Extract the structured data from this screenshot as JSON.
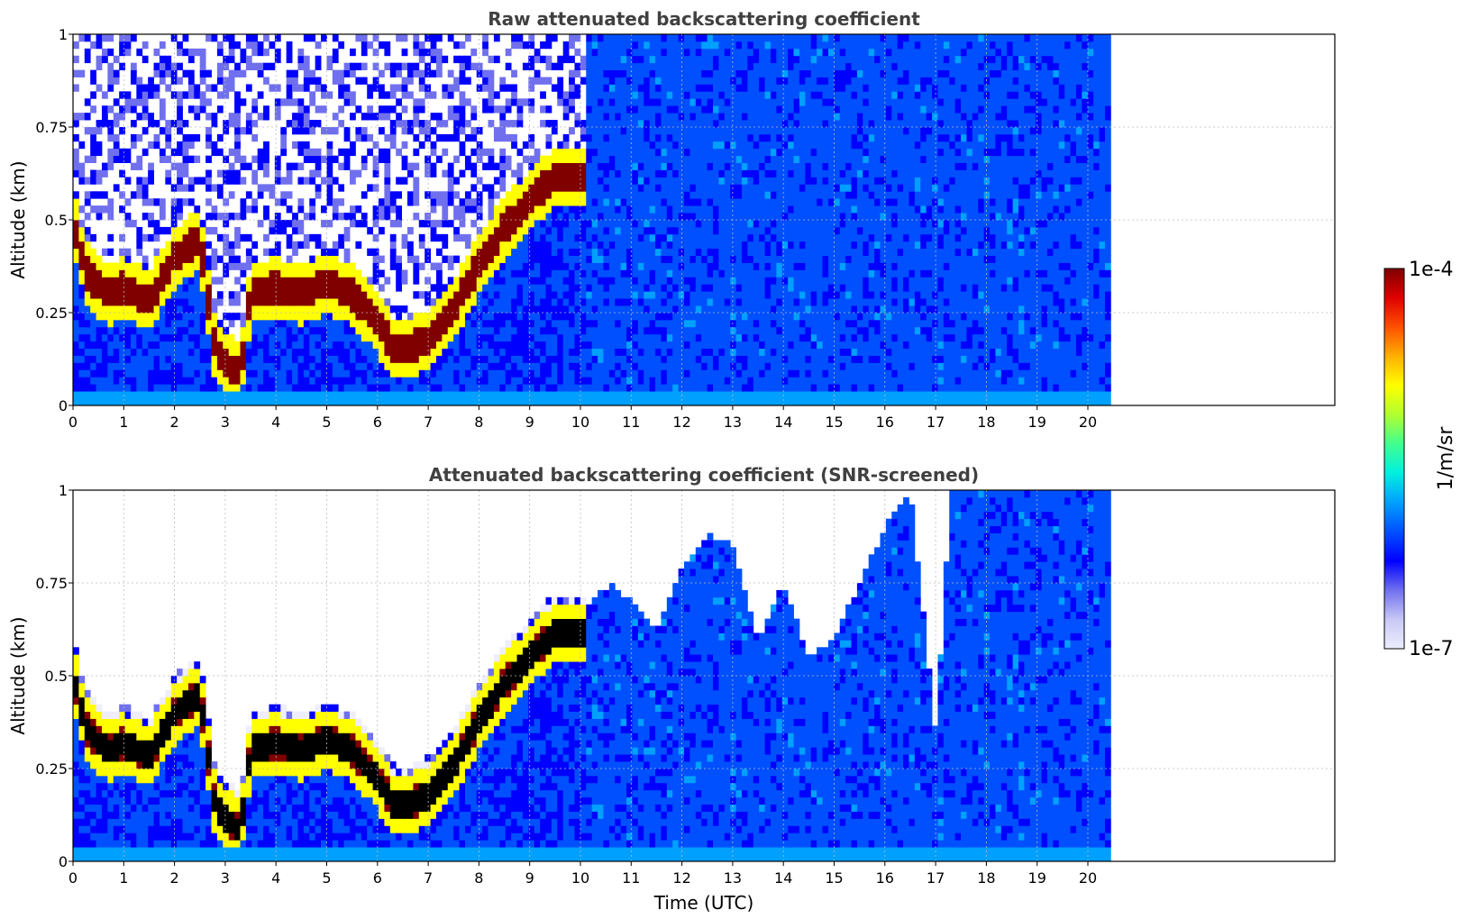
{
  "chart_data": [
    {
      "type": "heatmap",
      "title": "Raw attenuated backscattering coefficient",
      "xlabel": "",
      "ylabel": "Altitude (km)",
      "xlim": [
        0,
        24
      ],
      "ylim": [
        0,
        1
      ],
      "x_ticks": [
        "0",
        "1",
        "2",
        "3",
        "4",
        "5",
        "6",
        "7",
        "8",
        "9",
        "10",
        "11",
        "12",
        "13",
        "14",
        "15",
        "16",
        "17",
        "18",
        "19",
        "20"
      ],
      "y_ticks": [
        "0",
        "0.25",
        "0.5",
        "0.75",
        "1"
      ],
      "grid": true,
      "data_end_time": 20.45,
      "color_scale": "log",
      "layer_peak_altitude_km": [
        [
          0.0,
          0.5
        ],
        [
          0.25,
          0.36
        ],
        [
          0.5,
          0.32
        ],
        [
          0.75,
          0.3
        ],
        [
          1.0,
          0.32
        ],
        [
          1.5,
          0.28
        ],
        [
          2.0,
          0.4
        ],
        [
          2.5,
          0.45
        ],
        [
          2.8,
          0.15
        ],
        [
          3.0,
          0.12
        ],
        [
          3.3,
          0.08
        ],
        [
          3.5,
          0.3
        ],
        [
          4.0,
          0.32
        ],
        [
          4.5,
          0.3
        ],
        [
          5.0,
          0.33
        ],
        [
          5.5,
          0.3
        ],
        [
          6.0,
          0.22
        ],
        [
          6.3,
          0.16
        ],
        [
          6.6,
          0.15
        ],
        [
          7.0,
          0.18
        ],
        [
          7.5,
          0.26
        ],
        [
          8.0,
          0.38
        ],
        [
          8.5,
          0.48
        ],
        [
          9.0,
          0.55
        ],
        [
          9.5,
          0.62
        ],
        [
          10.0,
          0.62
        ]
      ]
    },
    {
      "type": "heatmap",
      "title": "Attenuated backscattering coefficient (SNR-screened)",
      "xlabel": "Time (UTC)",
      "ylabel": "Altitude (km)",
      "xlim": [
        0,
        24
      ],
      "ylim": [
        0,
        1
      ],
      "x_ticks": [
        "0",
        "1",
        "2",
        "3",
        "4",
        "5",
        "6",
        "7",
        "8",
        "9",
        "10",
        "11",
        "12",
        "13",
        "14",
        "15",
        "16",
        "17",
        "18",
        "19",
        "20"
      ],
      "y_ticks": [
        "0",
        "0.25",
        "0.5",
        "0.75",
        "1"
      ],
      "grid": true,
      "data_end_time": 20.45,
      "color_scale": "log",
      "screened_top_altitude_km": [
        [
          10.2,
          0.7
        ],
        [
          10.6,
          0.75
        ],
        [
          11.0,
          0.7
        ],
        [
          11.5,
          0.62
        ],
        [
          12.0,
          0.8
        ],
        [
          12.5,
          0.88
        ],
        [
          13.0,
          0.85
        ],
        [
          13.5,
          0.6
        ],
        [
          14.0,
          0.75
        ],
        [
          14.5,
          0.55
        ],
        [
          15.0,
          0.6
        ],
        [
          15.5,
          0.75
        ],
        [
          16.0,
          0.9
        ],
        [
          16.5,
          1.0
        ],
        [
          17.0,
          0.35
        ],
        [
          17.3,
          1.0
        ],
        [
          18.0,
          1.0
        ],
        [
          19.0,
          1.0
        ],
        [
          20.0,
          1.0
        ],
        [
          20.45,
          1.0
        ]
      ]
    }
  ],
  "colorbar": {
    "label": "1/m/sr",
    "max_label": "1e-4",
    "min_label": "1e-7",
    "colormap": [
      "#eeeeff",
      "#c8c8f6",
      "#7070ee",
      "#0000ff",
      "#0050ff",
      "#00a0ff",
      "#00f0e0",
      "#40ff90",
      "#b0ff30",
      "#ffff00",
      "#ffb000",
      "#ff5000",
      "#e00000",
      "#800000"
    ]
  }
}
